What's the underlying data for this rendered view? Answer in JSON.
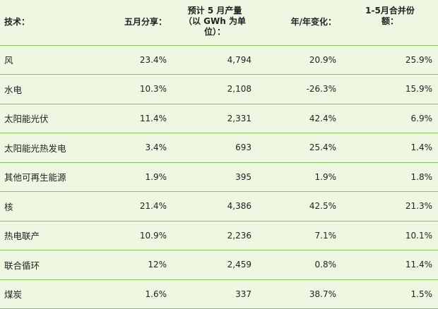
{
  "headers": {
    "tech": "技术：",
    "may_share": "五月分享：",
    "est_output_line1": "预计 5 月产量",
    "est_output_line2": "（以 GWh 为单",
    "est_output_line3": "位）：",
    "yoy": "年/年变化：",
    "ytd_share_line1": "1-5月合并份",
    "ytd_share_line2": "额："
  },
  "rows": [
    {
      "tech": "风",
      "may_share": "23.4%",
      "output": "4,794",
      "yoy": "20.9%",
      "ytd": "25.9%"
    },
    {
      "tech": "水电",
      "may_share": "10.3%",
      "output": "2,108",
      "yoy": "-26.3%",
      "ytd": "15.9%"
    },
    {
      "tech": "太阳能光伏",
      "may_share": "11.4%",
      "output": "2,331",
      "yoy": "42.4%",
      "ytd": "6.9%"
    },
    {
      "tech": "太阳能光热发电",
      "may_share": "3.4%",
      "output": "693",
      "yoy": "25.4%",
      "ytd": "1.4%"
    },
    {
      "tech": "其他可再生能源",
      "may_share": "1.9%",
      "output": "395",
      "yoy": "1.9%",
      "ytd": "1.8%"
    },
    {
      "tech": "核",
      "may_share": "21.4%",
      "output": "4,386",
      "yoy": "42.5%",
      "ytd": "21.3%"
    },
    {
      "tech": "热电联产",
      "may_share": "10.9%",
      "output": "2,236",
      "yoy": "7.1%",
      "ytd": "10.1%"
    },
    {
      "tech": "联合循环",
      "may_share": "12%",
      "output": "2,459",
      "yoy": "0.8%",
      "ytd": "11.4%"
    },
    {
      "tech": "煤炭",
      "may_share": "1.6%",
      "output": "337",
      "yoy": "38.7%",
      "ytd": "1.5%"
    }
  ]
}
